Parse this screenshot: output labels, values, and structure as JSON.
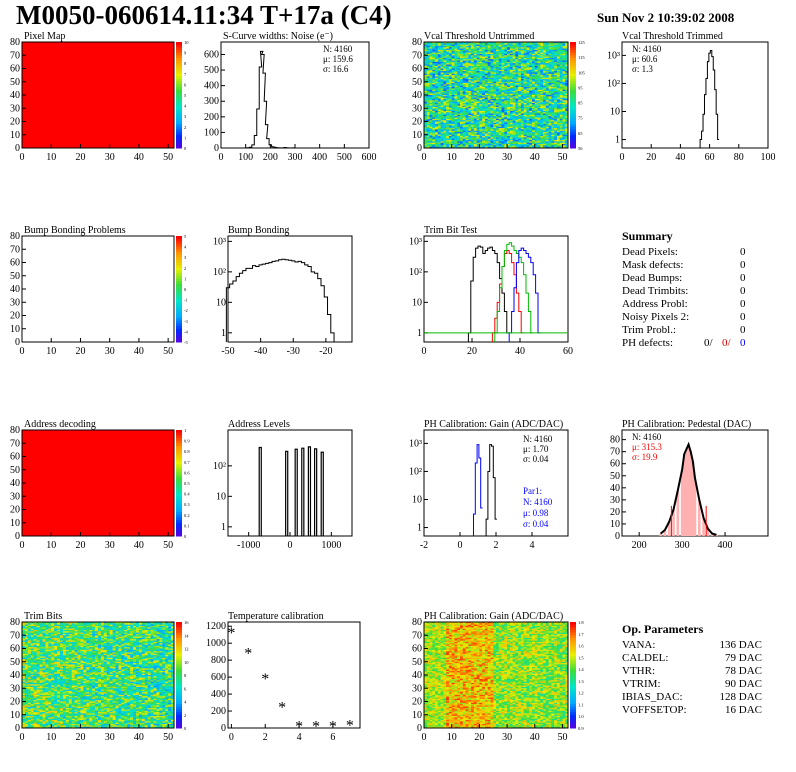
{
  "header": {
    "title": "M0050-060614.11:34 T+17a (C4)",
    "date": "Sun Nov  2 10:39:02 2008"
  },
  "colors": {
    "black": "#000000",
    "red": "#ff0000",
    "green": "#00bb00",
    "blue": "#0000ff",
    "map_red": "#ff0000"
  },
  "palette_labels": {
    "pixel_map": [
      "10",
      "9",
      "8",
      "7",
      "6",
      "5",
      "4",
      "3",
      "2",
      "1",
      "0"
    ],
    "bump_bonding_problems": [
      "5",
      "4",
      "3",
      "2",
      "1",
      "0",
      "-1",
      "-2",
      "-3",
      "-4",
      "-5"
    ],
    "address_decoding": [
      "1",
      "0.9",
      "0.8",
      "0.7",
      "0.6",
      "0.5",
      "0.4",
      "0.3",
      "0.2",
      "0.1",
      "0"
    ],
    "trim_bits": [
      "16",
      "14",
      "12",
      "10",
      "8",
      "6",
      "4",
      "2",
      "0"
    ],
    "vcal_untrimmed": [
      "125",
      "115",
      "105",
      "95",
      "85",
      "75",
      "65",
      "56"
    ],
    "ph_gain_map": [
      "1.8",
      "1.7",
      "1.6",
      "1.5",
      "1.4",
      "1.3",
      "1.2",
      "1.1",
      "1.0",
      "0.9"
    ]
  },
  "chart_data": [
    {
      "type": "heatmap",
      "title": "Pixel Map",
      "xlim": [
        0,
        52
      ],
      "ylim": [
        0,
        80
      ],
      "xticks": [
        "0",
        "10",
        "20",
        "30",
        "40",
        "50"
      ],
      "yticks": [
        "0",
        "10",
        "20",
        "30",
        "40",
        "50",
        "60",
        "70",
        "80"
      ],
      "fill": "uniform-max"
    },
    {
      "type": "bar",
      "title": "S-Curve widths: Noise (e⁻)",
      "xlim": [
        0,
        600
      ],
      "ylim": [
        0,
        680
      ],
      "xticks": [
        "0",
        "100",
        "200",
        "300",
        "400",
        "500",
        "600"
      ],
      "yticks": [
        "0",
        "100",
        "200",
        "300",
        "400",
        "500",
        "600"
      ],
      "stats": {
        "n": "N: 4160",
        "mu": "μ: 159.6",
        "sigma": "σ: 16.6"
      },
      "x": [
        110,
        120,
        130,
        140,
        150,
        160,
        165,
        170,
        175,
        180,
        185,
        190,
        200,
        210,
        220,
        230,
        240,
        250,
        260,
        270,
        280,
        290,
        300
      ],
      "values": [
        2,
        5,
        20,
        80,
        250,
        520,
        620,
        600,
        480,
        300,
        150,
        60,
        20,
        8,
        4,
        2,
        1,
        1,
        3,
        1,
        0,
        1,
        0
      ]
    },
    {
      "type": "heatmap",
      "title": "Vcal Threshold Untrimmed",
      "xlim": [
        0,
        52
      ],
      "ylim": [
        0,
        80
      ],
      "xticks": [
        "0",
        "10",
        "20",
        "30",
        "40",
        "50"
      ],
      "yticks": [
        "0",
        "10",
        "20",
        "30",
        "40",
        "50",
        "60",
        "70",
        "80"
      ],
      "fill": "noise-green"
    },
    {
      "type": "bar",
      "title": "Vcal Threshold Trimmed",
      "xlim": [
        0,
        100
      ],
      "log": true,
      "ylim": [
        0.5,
        3000
      ],
      "xticks": [
        "0",
        "20",
        "40",
        "60",
        "80",
        "100"
      ],
      "yticks": [
        "1",
        "10",
        "10²",
        "10³"
      ],
      "stats": {
        "n": "N: 4160",
        "mu": "μ: 60.6",
        "sigma": "σ:  1.3"
      },
      "x": [
        54,
        55,
        56,
        57,
        58,
        59,
        60,
        61,
        62,
        63,
        64,
        65,
        66
      ],
      "values": [
        1,
        2,
        8,
        40,
        150,
        600,
        1200,
        1500,
        900,
        300,
        60,
        8,
        1
      ]
    },
    {
      "type": "heatmap",
      "title": "Bump Bonding Problems",
      "xlim": [
        0,
        52
      ],
      "ylim": [
        0,
        80
      ],
      "xticks": [
        "0",
        "10",
        "20",
        "30",
        "40",
        "50"
      ],
      "yticks": [
        "0",
        "10",
        "20",
        "30",
        "40",
        "50",
        "60",
        "70",
        "80"
      ],
      "fill": "empty"
    },
    {
      "type": "bar",
      "title": "Bump Bonding",
      "xlim": [
        -50,
        -12
      ],
      "log": true,
      "ylim": [
        0.5,
        1500
      ],
      "xticks": [
        "-50",
        "-40",
        "-30",
        "-20"
      ],
      "yticks": [
        "1",
        "10",
        "10²",
        "10³"
      ],
      "x": [
        -50,
        -49,
        -48,
        -47,
        -46,
        -45,
        -44,
        -43,
        -42,
        -41,
        -40,
        -39,
        -38,
        -37,
        -36,
        -35,
        -34,
        -33,
        -32,
        -31,
        -30,
        -29,
        -28,
        -27,
        -26,
        -25,
        -24,
        -23,
        -22,
        -21,
        -20,
        -19,
        -18,
        -17
      ],
      "values": [
        30,
        40,
        50,
        70,
        90,
        110,
        130,
        130,
        160,
        150,
        170,
        180,
        190,
        200,
        220,
        230,
        250,
        260,
        250,
        240,
        230,
        210,
        220,
        200,
        170,
        150,
        100,
        90,
        60,
        35,
        15,
        4,
        1,
        0
      ]
    },
    {
      "type": "line",
      "title": "Trim Bit Test",
      "xlim": [
        0,
        60
      ],
      "log": true,
      "ylim": [
        0.5,
        1500
      ],
      "xticks": [
        "0",
        "20",
        "40",
        "60"
      ],
      "yticks": [
        "1",
        "10",
        "10²",
        "10³"
      ],
      "series": [
        {
          "color": "black",
          "x": [
            19,
            20,
            21,
            22,
            23,
            24,
            25,
            26,
            27,
            28,
            29,
            30,
            31,
            32,
            33,
            34,
            35
          ],
          "values": [
            1,
            50,
            300,
            600,
            700,
            650,
            400,
            500,
            600,
            650,
            500,
            400,
            200,
            60,
            20,
            5,
            1
          ]
        },
        {
          "color": "red",
          "x": [
            29,
            30,
            31,
            32,
            33,
            34,
            35,
            36,
            37,
            38,
            39,
            40,
            41
          ],
          "values": [
            1,
            3,
            10,
            40,
            150,
            400,
            500,
            400,
            200,
            80,
            20,
            5,
            1
          ]
        },
        {
          "color": "green",
          "x": [
            30,
            31,
            32,
            33,
            34,
            35,
            36,
            37,
            38,
            39,
            40,
            41,
            42,
            43,
            44,
            45
          ],
          "values": [
            1,
            5,
            30,
            150,
            500,
            800,
            900,
            700,
            500,
            400,
            300,
            200,
            80,
            20,
            5,
            1
          ]
        },
        {
          "color": "blue",
          "x": [
            36,
            37,
            38,
            39,
            40,
            41,
            42,
            43,
            44,
            45,
            46,
            47,
            48
          ],
          "values": [
            1,
            5,
            30,
            200,
            500,
            600,
            500,
            400,
            300,
            200,
            80,
            20,
            1
          ]
        }
      ]
    },
    {
      "type": "table",
      "title": "Summary",
      "rows": [
        [
          "Dead Pixels:",
          "0"
        ],
        [
          "Mask defects:",
          "0"
        ],
        [
          "Dead Bumps:",
          "0"
        ],
        [
          "Dead Trimbits:",
          "0"
        ],
        [
          "Address Probl:",
          "0"
        ],
        [
          "Noisy Pixels 2:",
          "0"
        ],
        [
          "Trim Probl.:",
          "0"
        ]
      ],
      "ph_defects": {
        "label": "PH defects:",
        "v1": "0/",
        "v2": "0/",
        "v3": "0"
      }
    },
    {
      "type": "heatmap",
      "title": "Address decoding",
      "xlim": [
        0,
        52
      ],
      "ylim": [
        0,
        80
      ],
      "xticks": [
        "0",
        "10",
        "20",
        "30",
        "40",
        "50"
      ],
      "yticks": [
        "0",
        "10",
        "20",
        "30",
        "40",
        "50",
        "60",
        "70",
        "80"
      ],
      "fill": "uniform-max"
    },
    {
      "type": "bar",
      "title": "Address Levels",
      "xlim": [
        -1500,
        1500
      ],
      "log": true,
      "ylim": [
        0.5,
        1500
      ],
      "xticks": [
        "-1000",
        "0",
        "1000"
      ],
      "yticks": [
        "1",
        "10",
        "10²"
      ],
      "peaks": [
        -720,
        -80,
        150,
        310,
        470,
        620,
        780
      ],
      "values": [
        400,
        300,
        350,
        380,
        420,
        360,
        280
      ]
    },
    {
      "type": "bar",
      "title": "PH Calibration: Gain (ADC/DAC)",
      "xlim": [
        -2,
        6
      ],
      "log": true,
      "ylim": [
        0.5,
        3000
      ],
      "xticks": [
        "-2",
        "0",
        "2",
        "4"
      ],
      "yticks": [
        "1",
        "10",
        "10²",
        "10³"
      ],
      "stats": {
        "n": "N: 4160",
        "mu": "μ: 1.70",
        "sigma": "σ: 0.04"
      },
      "stats2": {
        "name": "Par1:",
        "n": "N: 4160",
        "mu": "μ: 0.98",
        "sigma": "σ: 0.04"
      },
      "series": [
        {
          "color": "black",
          "x": [
            1.5,
            1.6,
            1.7,
            1.8,
            1.9,
            2.0
          ],
          "values": [
            2,
            100,
            900,
            800,
            60,
            2
          ]
        },
        {
          "color": "blue",
          "x": [
            0.8,
            0.9,
            1.0,
            1.1,
            1.2
          ],
          "values": [
            3,
            200,
            900,
            300,
            5
          ]
        }
      ]
    },
    {
      "type": "bar",
      "title": "PH Calibration: Pedestal (DAC)",
      "xlim": [
        160,
        500
      ],
      "ylim": [
        0,
        88
      ],
      "xticks": [
        "200",
        "300",
        "400"
      ],
      "yticks": [
        "0",
        "10",
        "20",
        "30",
        "40",
        "50",
        "60",
        "70",
        "80"
      ],
      "stats": {
        "n": "N: 4160",
        "mu": "μ: 315.3",
        "sigma": "σ: 19.9"
      },
      "x": [
        250,
        260,
        270,
        280,
        290,
        300,
        305,
        310,
        315,
        320,
        325,
        330,
        340,
        350,
        360,
        370,
        380
      ],
      "values": [
        2,
        5,
        12,
        22,
        38,
        55,
        68,
        72,
        76,
        70,
        62,
        48,
        30,
        15,
        6,
        2,
        1
      ]
    },
    {
      "type": "heatmap",
      "title": "Trim Bits",
      "xlim": [
        0,
        52
      ],
      "ylim": [
        0,
        80
      ],
      "xticks": [
        "0",
        "10",
        "20",
        "30",
        "40",
        "50"
      ],
      "yticks": [
        "0",
        "10",
        "20",
        "30",
        "40",
        "50",
        "60",
        "70",
        "80"
      ],
      "fill": "noise-trim"
    },
    {
      "type": "scatter",
      "title": "Temperature calibration",
      "xlim": [
        -0.2,
        7.6
      ],
      "ylim": [
        0,
        1250
      ],
      "xticks": [
        "0",
        "2",
        "4",
        "6"
      ],
      "yticks": [
        "0",
        "200",
        "400",
        "600",
        "800",
        "1000",
        "1200"
      ],
      "x": [
        0,
        1,
        2,
        3,
        4,
        5,
        6,
        7
      ],
      "values": [
        1120,
        880,
        580,
        240,
        20,
        20,
        20,
        30
      ]
    },
    {
      "type": "heatmap",
      "title": "PH Calibration: Gain (ADC/DAC)",
      "xlim": [
        0,
        52
      ],
      "ylim": [
        0,
        80
      ],
      "xticks": [
        "0",
        "10",
        "20",
        "30",
        "40",
        "50"
      ],
      "yticks": [
        "0",
        "10",
        "20",
        "30",
        "40",
        "50",
        "60",
        "70",
        "80"
      ],
      "fill": "noise-gain"
    },
    {
      "type": "table",
      "title": "Op. Parameters",
      "rows": [
        [
          "VANA:",
          "136 DAC"
        ],
        [
          "CALDEL:",
          "79 DAC"
        ],
        [
          "VTHR:",
          "78 DAC"
        ],
        [
          "VTRIM:",
          "90 DAC"
        ],
        [
          "IBIAS_DAC:",
          "128 DAC"
        ],
        [
          "VOFFSETOP:",
          "16 DAC"
        ]
      ]
    }
  ]
}
